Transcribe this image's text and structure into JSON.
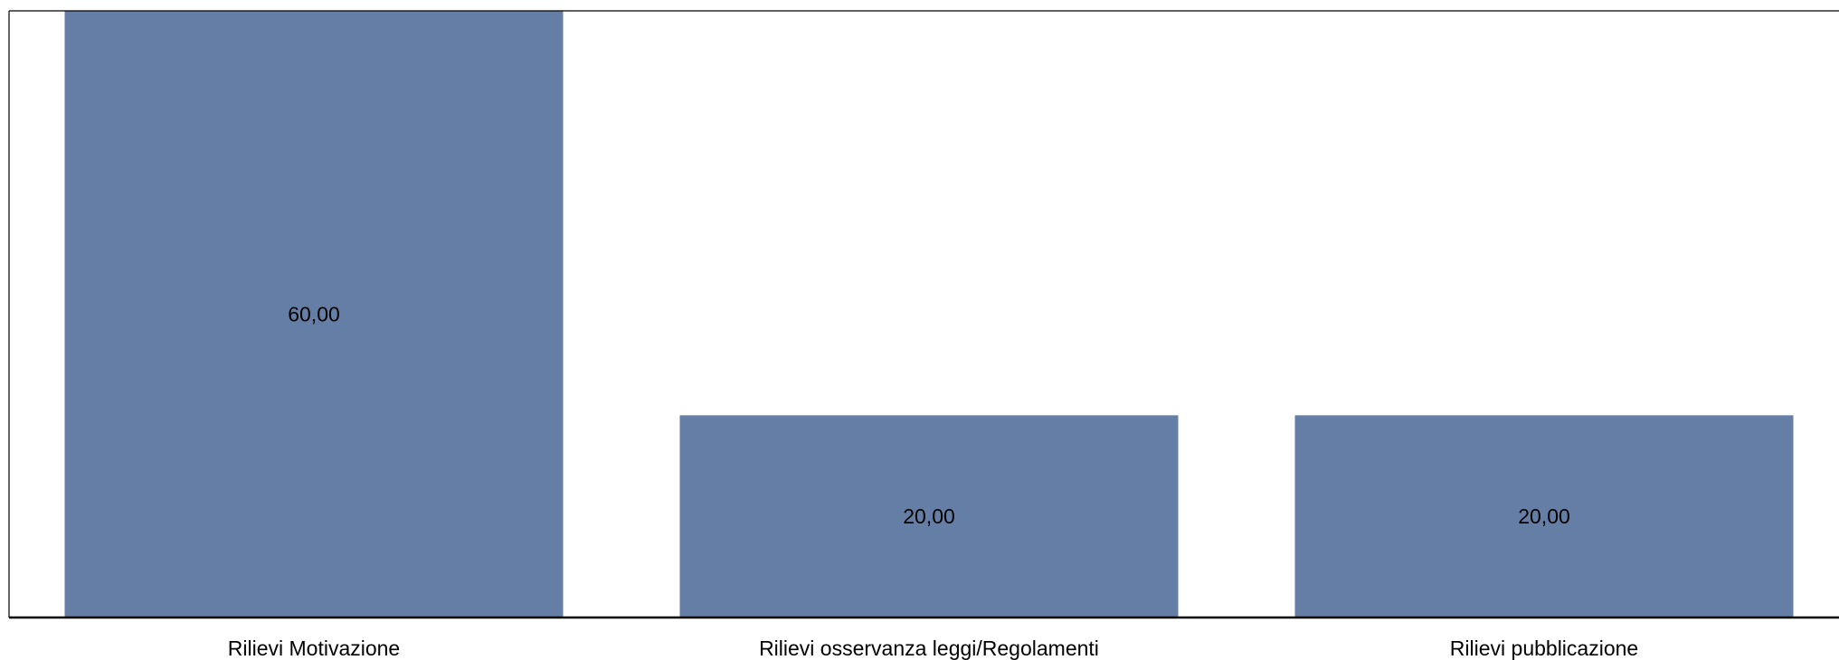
{
  "chart_data": {
    "type": "bar",
    "categories": [
      "Rilievi Motivazione",
      "Rilievi osservanza leggi/Regolamenti",
      "Rilievi pubblicazione"
    ],
    "values": [
      60,
      20,
      20
    ],
    "value_labels": [
      "60,00",
      "20,00",
      "20,00"
    ],
    "ylim": [
      0,
      60
    ],
    "grid": false,
    "legend": "none",
    "colors": {
      "bar": "#647ea5",
      "axis": "#000000",
      "frame": "#000000",
      "background": "#ffffff"
    }
  }
}
